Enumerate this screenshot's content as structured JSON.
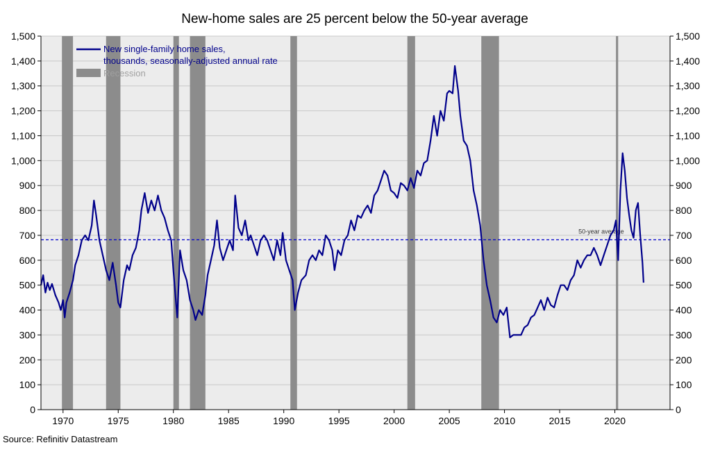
{
  "chart_data": {
    "type": "line",
    "title": "New-home sales are 25 percent below the 50-year average",
    "source": "Source: Refinitiv Datastream",
    "xlim": [
      1968,
      2025
    ],
    "ylim": [
      0,
      1500
    ],
    "x_ticks": [
      1970,
      1975,
      1980,
      1985,
      1990,
      1995,
      2000,
      2005,
      2010,
      2015,
      2020
    ],
    "y_ticks": [
      0,
      100,
      200,
      300,
      400,
      500,
      600,
      700,
      800,
      900,
      1000,
      1100,
      1200,
      1300,
      1400,
      1500
    ],
    "y_tick_labels": [
      "0",
      "100",
      "200",
      "300",
      "400",
      "500",
      "600",
      "700",
      "800",
      "900",
      "1,000",
      "1,100",
      "1,200",
      "1,300",
      "1,400",
      "1,500"
    ],
    "grid": "horizontal",
    "legend_placement": "top-left",
    "legend": [
      {
        "label_line1": "New single-family home sales,",
        "label_line2": "thousands, seasonally-adjusted annual rate",
        "color": "#00008b"
      },
      {
        "label": "Recession",
        "color": "#8c8c8c"
      }
    ],
    "reference_line": {
      "y": 682,
      "label": "50-year average",
      "color": "#0000cc"
    },
    "recessions": [
      [
        1969.9,
        1970.9
      ],
      [
        1973.9,
        1975.2
      ],
      [
        1980.0,
        1980.5
      ],
      [
        1981.5,
        1982.9
      ],
      [
        1990.6,
        1991.2
      ],
      [
        2001.2,
        2001.9
      ],
      [
        2007.9,
        2009.5
      ],
      [
        2020.1,
        2020.3
      ]
    ],
    "series": [
      {
        "name": "New single-family home sales, thousands, seasonally-adjusted annual rate",
        "color": "#00008b",
        "points": [
          [
            1968.0,
            500
          ],
          [
            1968.2,
            540
          ],
          [
            1968.4,
            470
          ],
          [
            1968.6,
            510
          ],
          [
            1968.8,
            480
          ],
          [
            1969.0,
            505
          ],
          [
            1969.3,
            460
          ],
          [
            1969.6,
            430
          ],
          [
            1969.8,
            400
          ],
          [
            1970.0,
            440
          ],
          [
            1970.15,
            370
          ],
          [
            1970.3,
            430
          ],
          [
            1970.6,
            470
          ],
          [
            1970.9,
            520
          ],
          [
            1971.1,
            580
          ],
          [
            1971.4,
            620
          ],
          [
            1971.7,
            680
          ],
          [
            1972.0,
            700
          ],
          [
            1972.3,
            680
          ],
          [
            1972.6,
            740
          ],
          [
            1972.8,
            840
          ],
          [
            1973.0,
            780
          ],
          [
            1973.3,
            680
          ],
          [
            1973.6,
            620
          ],
          [
            1973.9,
            560
          ],
          [
            1974.2,
            520
          ],
          [
            1974.5,
            590
          ],
          [
            1974.8,
            500
          ],
          [
            1975.0,
            430
          ],
          [
            1975.2,
            410
          ],
          [
            1975.5,
            520
          ],
          [
            1975.8,
            580
          ],
          [
            1976.0,
            560
          ],
          [
            1976.3,
            620
          ],
          [
            1976.6,
            650
          ],
          [
            1976.9,
            720
          ],
          [
            1977.1,
            800
          ],
          [
            1977.4,
            870
          ],
          [
            1977.7,
            790
          ],
          [
            1978.0,
            840
          ],
          [
            1978.3,
            800
          ],
          [
            1978.6,
            860
          ],
          [
            1978.9,
            800
          ],
          [
            1979.2,
            770
          ],
          [
            1979.5,
            720
          ],
          [
            1979.8,
            680
          ],
          [
            1980.0,
            560
          ],
          [
            1980.2,
            450
          ],
          [
            1980.35,
            370
          ],
          [
            1980.6,
            640
          ],
          [
            1980.9,
            560
          ],
          [
            1981.2,
            520
          ],
          [
            1981.5,
            440
          ],
          [
            1981.8,
            400
          ],
          [
            1982.0,
            360
          ],
          [
            1982.3,
            400
          ],
          [
            1982.6,
            380
          ],
          [
            1982.9,
            460
          ],
          [
            1983.1,
            540
          ],
          [
            1983.4,
            600
          ],
          [
            1983.7,
            660
          ],
          [
            1983.95,
            760
          ],
          [
            1984.2,
            650
          ],
          [
            1984.5,
            600
          ],
          [
            1984.8,
            640
          ],
          [
            1985.1,
            680
          ],
          [
            1985.4,
            640
          ],
          [
            1985.6,
            860
          ],
          [
            1985.9,
            730
          ],
          [
            1986.2,
            700
          ],
          [
            1986.5,
            760
          ],
          [
            1986.8,
            680
          ],
          [
            1987.0,
            700
          ],
          [
            1987.3,
            660
          ],
          [
            1987.6,
            620
          ],
          [
            1987.9,
            680
          ],
          [
            1988.2,
            700
          ],
          [
            1988.5,
            680
          ],
          [
            1988.8,
            640
          ],
          [
            1989.1,
            600
          ],
          [
            1989.4,
            680
          ],
          [
            1989.7,
            620
          ],
          [
            1989.9,
            710
          ],
          [
            1990.2,
            600
          ],
          [
            1990.5,
            560
          ],
          [
            1990.8,
            520
          ],
          [
            1991.0,
            400
          ],
          [
            1991.3,
            470
          ],
          [
            1991.6,
            520
          ],
          [
            1992.0,
            540
          ],
          [
            1992.3,
            600
          ],
          [
            1992.6,
            620
          ],
          [
            1992.9,
            600
          ],
          [
            1993.2,
            640
          ],
          [
            1993.5,
            620
          ],
          [
            1993.8,
            700
          ],
          [
            1994.1,
            680
          ],
          [
            1994.4,
            640
          ],
          [
            1994.6,
            560
          ],
          [
            1994.9,
            640
          ],
          [
            1995.2,
            620
          ],
          [
            1995.5,
            680
          ],
          [
            1995.8,
            700
          ],
          [
            1996.1,
            760
          ],
          [
            1996.4,
            720
          ],
          [
            1996.7,
            780
          ],
          [
            1997.0,
            770
          ],
          [
            1997.3,
            800
          ],
          [
            1997.6,
            820
          ],
          [
            1997.9,
            790
          ],
          [
            1998.2,
            860
          ],
          [
            1998.5,
            880
          ],
          [
            1998.8,
            920
          ],
          [
            1999.1,
            960
          ],
          [
            1999.4,
            940
          ],
          [
            1999.7,
            880
          ],
          [
            2000.0,
            870
          ],
          [
            2000.3,
            850
          ],
          [
            2000.6,
            910
          ],
          [
            2000.9,
            900
          ],
          [
            2001.2,
            880
          ],
          [
            2001.5,
            930
          ],
          [
            2001.8,
            890
          ],
          [
            2002.1,
            960
          ],
          [
            2002.4,
            940
          ],
          [
            2002.7,
            990
          ],
          [
            2003.0,
            1000
          ],
          [
            2003.3,
            1080
          ],
          [
            2003.6,
            1180
          ],
          [
            2003.9,
            1100
          ],
          [
            2004.2,
            1200
          ],
          [
            2004.5,
            1160
          ],
          [
            2004.8,
            1270
          ],
          [
            2005.0,
            1280
          ],
          [
            2005.3,
            1270
          ],
          [
            2005.5,
            1380
          ],
          [
            2005.8,
            1280
          ],
          [
            2006.0,
            1180
          ],
          [
            2006.3,
            1080
          ],
          [
            2006.6,
            1060
          ],
          [
            2006.9,
            1000
          ],
          [
            2007.2,
            880
          ],
          [
            2007.5,
            820
          ],
          [
            2007.8,
            740
          ],
          [
            2008.1,
            600
          ],
          [
            2008.4,
            500
          ],
          [
            2008.7,
            440
          ],
          [
            2009.0,
            370
          ],
          [
            2009.3,
            350
          ],
          [
            2009.6,
            400
          ],
          [
            2009.9,
            380
          ],
          [
            2010.2,
            410
          ],
          [
            2010.5,
            290
          ],
          [
            2010.8,
            300
          ],
          [
            2011.2,
            300
          ],
          [
            2011.5,
            300
          ],
          [
            2011.8,
            330
          ],
          [
            2012.1,
            340
          ],
          [
            2012.4,
            370
          ],
          [
            2012.7,
            380
          ],
          [
            2013.0,
            410
          ],
          [
            2013.3,
            440
          ],
          [
            2013.6,
            400
          ],
          [
            2013.9,
            450
          ],
          [
            2014.2,
            420
          ],
          [
            2014.5,
            410
          ],
          [
            2014.8,
            460
          ],
          [
            2015.1,
            500
          ],
          [
            2015.4,
            500
          ],
          [
            2015.7,
            480
          ],
          [
            2016.0,
            520
          ],
          [
            2016.3,
            540
          ],
          [
            2016.6,
            600
          ],
          [
            2016.9,
            570
          ],
          [
            2017.2,
            600
          ],
          [
            2017.5,
            620
          ],
          [
            2017.8,
            620
          ],
          [
            2018.1,
            650
          ],
          [
            2018.4,
            620
          ],
          [
            2018.7,
            580
          ],
          [
            2019.0,
            620
          ],
          [
            2019.3,
            660
          ],
          [
            2019.6,
            700
          ],
          [
            2019.9,
            720
          ],
          [
            2020.1,
            760
          ],
          [
            2020.3,
            600
          ],
          [
            2020.5,
            880
          ],
          [
            2020.7,
            1030
          ],
          [
            2020.9,
            960
          ],
          [
            2021.1,
            850
          ],
          [
            2021.3,
            780
          ],
          [
            2021.5,
            720
          ],
          [
            2021.7,
            690
          ],
          [
            2021.9,
            800
          ],
          [
            2022.1,
            830
          ],
          [
            2022.3,
            700
          ],
          [
            2022.5,
            590
          ],
          [
            2022.6,
            510
          ]
        ]
      }
    ]
  }
}
